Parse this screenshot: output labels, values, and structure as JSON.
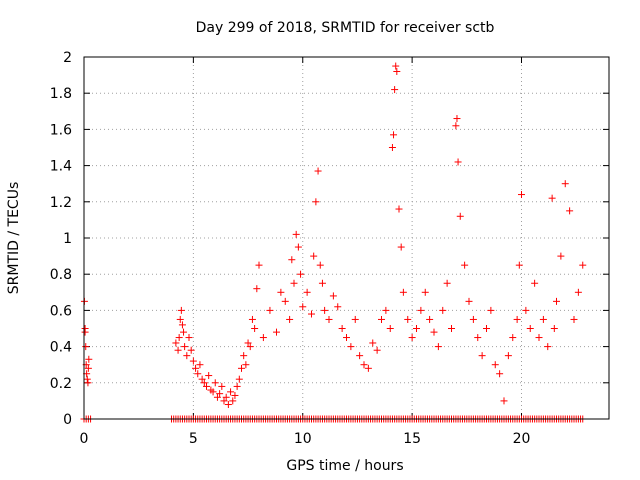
{
  "chart_data": {
    "type": "scatter",
    "title": "Day 299 of 2018, SRMTID for receiver sctb",
    "xlabel": "GPS time / hours",
    "ylabel": "SRMTID / TECUs",
    "xlim": [
      0,
      24
    ],
    "ylim": [
      0,
      2
    ],
    "xticks": [
      0,
      5,
      10,
      15,
      20
    ],
    "xtick_labels": [
      "0",
      "5",
      "10",
      "15",
      "20"
    ],
    "yticks": [
      0,
      0.2,
      0.4,
      0.6,
      0.8,
      1,
      1.2,
      1.4,
      1.6,
      1.8,
      2
    ],
    "ytick_labels": [
      "0",
      "0.2",
      "0.4",
      "0.6",
      "0.8",
      "1",
      "1.2",
      "1.4",
      "1.6",
      "1.8",
      "2"
    ],
    "grid": true,
    "marker": "+",
    "color": "#ff0000",
    "series": [
      {
        "name": "SRMTID",
        "x": [
          0.02,
          0.05,
          0.05,
          0.08,
          0.1,
          0.12,
          0.15,
          0.18,
          0.2,
          0.22,
          4.2,
          4.3,
          4.35,
          4.4,
          4.45,
          4.5,
          4.55,
          4.6,
          4.7,
          4.8,
          4.9,
          5.0,
          5.1,
          5.2,
          5.3,
          5.4,
          5.5,
          5.6,
          5.7,
          5.8,
          5.9,
          6.0,
          6.1,
          6.2,
          6.3,
          6.4,
          6.5,
          6.6,
          6.7,
          6.8,
          6.9,
          7.0,
          7.1,
          7.2,
          7.3,
          7.4,
          7.5,
          7.6,
          7.7,
          7.8,
          7.9,
          8.0,
          8.2,
          8.5,
          8.8,
          9.0,
          9.2,
          9.4,
          9.5,
          9.6,
          9.7,
          9.8,
          9.9,
          10.0,
          10.2,
          10.4,
          10.5,
          10.6,
          10.7,
          10.8,
          10.9,
          11.0,
          11.2,
          11.4,
          11.6,
          11.8,
          12.0,
          12.2,
          12.4,
          12.6,
          12.8,
          13.0,
          13.2,
          13.4,
          13.6,
          13.8,
          14.0,
          14.1,
          14.15,
          14.2,
          14.25,
          14.3,
          14.4,
          14.5,
          14.6,
          14.8,
          15.0,
          15.2,
          15.4,
          15.6,
          15.8,
          16.0,
          16.2,
          16.4,
          16.6,
          16.8,
          17.0,
          17.05,
          17.1,
          17.2,
          17.4,
          17.6,
          17.8,
          18.0,
          18.2,
          18.4,
          18.6,
          18.8,
          19.0,
          19.2,
          19.4,
          19.6,
          19.8,
          19.9,
          20.0,
          20.2,
          20.4,
          20.6,
          20.8,
          21.0,
          21.2,
          21.4,
          21.5,
          21.6,
          21.8,
          22.0,
          22.2,
          22.4,
          22.6,
          22.8
        ],
        "y": [
          0.65,
          0.5,
          0.48,
          0.4,
          0.3,
          0.25,
          0.22,
          0.2,
          0.28,
          0.33,
          0.42,
          0.38,
          0.45,
          0.55,
          0.6,
          0.52,
          0.48,
          0.4,
          0.35,
          0.45,
          0.38,
          0.32,
          0.28,
          0.25,
          0.3,
          0.22,
          0.2,
          0.18,
          0.24,
          0.16,
          0.15,
          0.2,
          0.12,
          0.14,
          0.18,
          0.1,
          0.12,
          0.08,
          0.15,
          0.1,
          0.13,
          0.18,
          0.22,
          0.28,
          0.35,
          0.3,
          0.42,
          0.4,
          0.55,
          0.5,
          0.72,
          0.85,
          0.45,
          0.6,
          0.48,
          0.7,
          0.65,
          0.55,
          0.88,
          0.75,
          1.02,
          0.95,
          0.8,
          0.62,
          0.7,
          0.58,
          0.9,
          1.2,
          1.37,
          0.85,
          0.75,
          0.6,
          0.55,
          0.68,
          0.62,
          0.5,
          0.45,
          0.4,
          0.55,
          0.35,
          0.3,
          0.28,
          0.42,
          0.38,
          0.55,
          0.6,
          0.5,
          1.5,
          1.57,
          1.82,
          1.95,
          1.92,
          1.16,
          0.95,
          0.7,
          0.55,
          0.45,
          0.5,
          0.6,
          0.7,
          0.55,
          0.48,
          0.4,
          0.6,
          0.75,
          0.5,
          1.62,
          1.66,
          1.42,
          1.12,
          0.85,
          0.65,
          0.55,
          0.45,
          0.35,
          0.5,
          0.6,
          0.3,
          0.25,
          0.1,
          0.35,
          0.45,
          0.55,
          0.85,
          1.24,
          0.6,
          0.5,
          0.75,
          0.45,
          0.55,
          0.4,
          1.22,
          0.5,
          0.65,
          0.9,
          1.3,
          1.15,
          0.55,
          0.7,
          0.85
        ]
      }
    ],
    "zero_line_segments": [
      [
        0,
        0.35
      ],
      [
        4.0,
        22.8
      ]
    ]
  }
}
